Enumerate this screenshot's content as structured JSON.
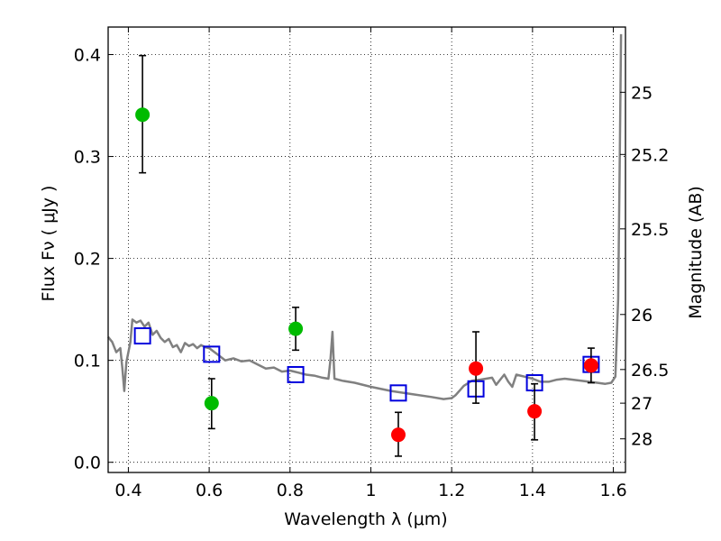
{
  "chart_data": {
    "type": "scatter",
    "title": "",
    "xlabel": "Wavelength  λ (μm)",
    "ylabel": "Flux  Fν  ( μJy )",
    "ylabel_right": "Magnitude (AB)",
    "xlim": [
      0.35,
      1.63
    ],
    "ylim": [
      -0.01,
      0.427
    ],
    "grid": true,
    "x_ticks": [
      0.4,
      0.6,
      0.8,
      1.0,
      1.2,
      1.4,
      1.6
    ],
    "x_tick_labels": [
      "0.4",
      "0.6",
      "0.8",
      "1",
      "1.2",
      "1.4",
      "1.6"
    ],
    "y_ticks": [
      0.0,
      0.1,
      0.2,
      0.3,
      0.4
    ],
    "y_tick_labels": [
      "0.0",
      "0.1",
      "0.2",
      "0.3",
      "0.4"
    ],
    "right_ticks": [
      {
        "label": "25",
        "flux": 0.363
      },
      {
        "label": "25.2",
        "flux": 0.302
      },
      {
        "label": "25.5",
        "flux": 0.229
      },
      {
        "label": "26",
        "flux": 0.145
      },
      {
        "label": "26.5",
        "flux": 0.091
      },
      {
        "label": "27",
        "flux": 0.058
      },
      {
        "label": "28",
        "flux": 0.023
      }
    ],
    "series": [
      {
        "marker": "circle",
        "color": "#00bb00",
        "points": [
          {
            "x": 0.435,
            "y": 0.341,
            "err_low": 0.284,
            "err_high": 0.399
          },
          {
            "x": 0.606,
            "y": 0.058,
            "err_low": 0.033,
            "err_high": 0.082
          },
          {
            "x": 0.814,
            "y": 0.131,
            "err_low": 0.11,
            "err_high": 0.152
          }
        ]
      },
      {
        "marker": "circle",
        "color": "#ff0000",
        "points": [
          {
            "x": 1.068,
            "y": 0.027,
            "err_low": 0.006,
            "err_high": 0.049
          },
          {
            "x": 1.26,
            "y": 0.092,
            "err_low": 0.058,
            "err_high": 0.128
          },
          {
            "x": 1.405,
            "y": 0.05,
            "err_low": 0.022,
            "err_high": 0.077
          },
          {
            "x": 1.545,
            "y": 0.095,
            "err_low": 0.078,
            "err_high": 0.112
          }
        ]
      },
      {
        "marker": "open-square",
        "color": "#0000dd",
        "points": [
          {
            "x": 0.435,
            "y": 0.124
          },
          {
            "x": 0.606,
            "y": 0.106
          },
          {
            "x": 0.814,
            "y": 0.086
          },
          {
            "x": 1.068,
            "y": 0.068
          },
          {
            "x": 1.26,
            "y": 0.072
          },
          {
            "x": 1.405,
            "y": 0.078
          },
          {
            "x": 1.545,
            "y": 0.096
          }
        ]
      },
      {
        "marker": "line",
        "color": "#808080",
        "points": [
          {
            "x": 0.35,
            "y": 0.123
          },
          {
            "x": 0.36,
            "y": 0.118
          },
          {
            "x": 0.37,
            "y": 0.108
          },
          {
            "x": 0.38,
            "y": 0.112
          },
          {
            "x": 0.385,
            "y": 0.093
          },
          {
            "x": 0.39,
            "y": 0.07
          },
          {
            "x": 0.395,
            "y": 0.098
          },
          {
            "x": 0.405,
            "y": 0.118
          },
          {
            "x": 0.41,
            "y": 0.14
          },
          {
            "x": 0.42,
            "y": 0.137
          },
          {
            "x": 0.43,
            "y": 0.139
          },
          {
            "x": 0.44,
            "y": 0.133
          },
          {
            "x": 0.45,
            "y": 0.137
          },
          {
            "x": 0.46,
            "y": 0.125
          },
          {
            "x": 0.47,
            "y": 0.129
          },
          {
            "x": 0.48,
            "y": 0.122
          },
          {
            "x": 0.49,
            "y": 0.118
          },
          {
            "x": 0.5,
            "y": 0.121
          },
          {
            "x": 0.51,
            "y": 0.113
          },
          {
            "x": 0.52,
            "y": 0.115
          },
          {
            "x": 0.53,
            "y": 0.108
          },
          {
            "x": 0.54,
            "y": 0.117
          },
          {
            "x": 0.55,
            "y": 0.114
          },
          {
            "x": 0.56,
            "y": 0.116
          },
          {
            "x": 0.57,
            "y": 0.112
          },
          {
            "x": 0.58,
            "y": 0.115
          },
          {
            "x": 0.59,
            "y": 0.113
          },
          {
            "x": 0.6,
            "y": 0.112
          },
          {
            "x": 0.62,
            "y": 0.106
          },
          {
            "x": 0.64,
            "y": 0.1
          },
          {
            "x": 0.66,
            "y": 0.102
          },
          {
            "x": 0.68,
            "y": 0.099
          },
          {
            "x": 0.7,
            "y": 0.1
          },
          {
            "x": 0.72,
            "y": 0.096
          },
          {
            "x": 0.74,
            "y": 0.092
          },
          {
            "x": 0.76,
            "y": 0.093
          },
          {
            "x": 0.78,
            "y": 0.089
          },
          {
            "x": 0.8,
            "y": 0.09
          },
          {
            "x": 0.82,
            "y": 0.088
          },
          {
            "x": 0.84,
            "y": 0.086
          },
          {
            "x": 0.86,
            "y": 0.085
          },
          {
            "x": 0.88,
            "y": 0.083
          },
          {
            "x": 0.895,
            "y": 0.082
          },
          {
            "x": 0.9,
            "y": 0.1
          },
          {
            "x": 0.905,
            "y": 0.128
          },
          {
            "x": 0.91,
            "y": 0.082
          },
          {
            "x": 0.93,
            "y": 0.08
          },
          {
            "x": 0.96,
            "y": 0.078
          },
          {
            "x": 1.0,
            "y": 0.074
          },
          {
            "x": 1.05,
            "y": 0.07
          },
          {
            "x": 1.1,
            "y": 0.067
          },
          {
            "x": 1.15,
            "y": 0.064
          },
          {
            "x": 1.18,
            "y": 0.062
          },
          {
            "x": 1.2,
            "y": 0.063
          },
          {
            "x": 1.21,
            "y": 0.066
          },
          {
            "x": 1.23,
            "y": 0.075
          },
          {
            "x": 1.25,
            "y": 0.08
          },
          {
            "x": 1.27,
            "y": 0.081
          },
          {
            "x": 1.3,
            "y": 0.083
          },
          {
            "x": 1.31,
            "y": 0.076
          },
          {
            "x": 1.32,
            "y": 0.081
          },
          {
            "x": 1.33,
            "y": 0.086
          },
          {
            "x": 1.34,
            "y": 0.079
          },
          {
            "x": 1.35,
            "y": 0.074
          },
          {
            "x": 1.36,
            "y": 0.086
          },
          {
            "x": 1.37,
            "y": 0.085
          },
          {
            "x": 1.38,
            "y": 0.084
          },
          {
            "x": 1.4,
            "y": 0.082
          },
          {
            "x": 1.42,
            "y": 0.079
          },
          {
            "x": 1.44,
            "y": 0.079
          },
          {
            "x": 1.46,
            "y": 0.081
          },
          {
            "x": 1.48,
            "y": 0.082
          },
          {
            "x": 1.5,
            "y": 0.081
          },
          {
            "x": 1.52,
            "y": 0.08
          },
          {
            "x": 1.54,
            "y": 0.079
          },
          {
            "x": 1.56,
            "y": 0.078
          },
          {
            "x": 1.58,
            "y": 0.077
          },
          {
            "x": 1.595,
            "y": 0.078
          },
          {
            "x": 1.605,
            "y": 0.084
          },
          {
            "x": 1.612,
            "y": 0.16
          },
          {
            "x": 1.616,
            "y": 0.3
          },
          {
            "x": 1.619,
            "y": 0.42
          }
        ]
      }
    ]
  }
}
